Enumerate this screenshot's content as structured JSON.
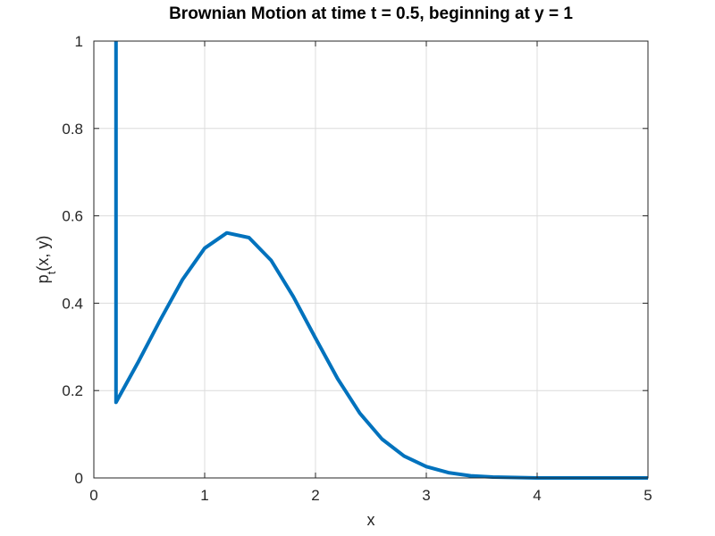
{
  "chart_data": {
    "type": "line",
    "title": "Brownian Motion at time t = 0.5, beginning at y = 1",
    "xlabel": "x",
    "ylabel": {
      "base": "p",
      "subscript": "t",
      "rest": "(x, y)"
    },
    "xlim": [
      0,
      5
    ],
    "ylim": [
      0,
      1
    ],
    "xticks": [
      "0",
      "1",
      "2",
      "3",
      "4",
      "5"
    ],
    "yticks": [
      "0",
      "0.2",
      "0.4",
      "0.6",
      "0.8",
      "1"
    ],
    "grid": true,
    "series": [
      {
        "color": "#0072BD",
        "x": [
          0.2,
          0.2,
          0.2,
          0.4,
          0.6,
          0.8,
          1.0,
          1.2,
          1.4,
          1.6,
          1.8,
          2.0,
          2.2,
          2.4,
          2.6,
          2.8,
          3.0,
          3.2,
          3.4,
          3.6,
          3.8,
          4.0,
          4.2,
          4.4,
          4.6,
          4.8,
          5.0
        ],
        "y": [
          1.0,
          0.8,
          0.173,
          0.265,
          0.362,
          0.454,
          0.526,
          0.561,
          0.55,
          0.498,
          0.415,
          0.32,
          0.227,
          0.148,
          0.089,
          0.05,
          0.026,
          0.012,
          0.005,
          0.002,
          0.001,
          0.0,
          0.0,
          0.0,
          0.0,
          0.0,
          0.0
        ]
      }
    ]
  }
}
